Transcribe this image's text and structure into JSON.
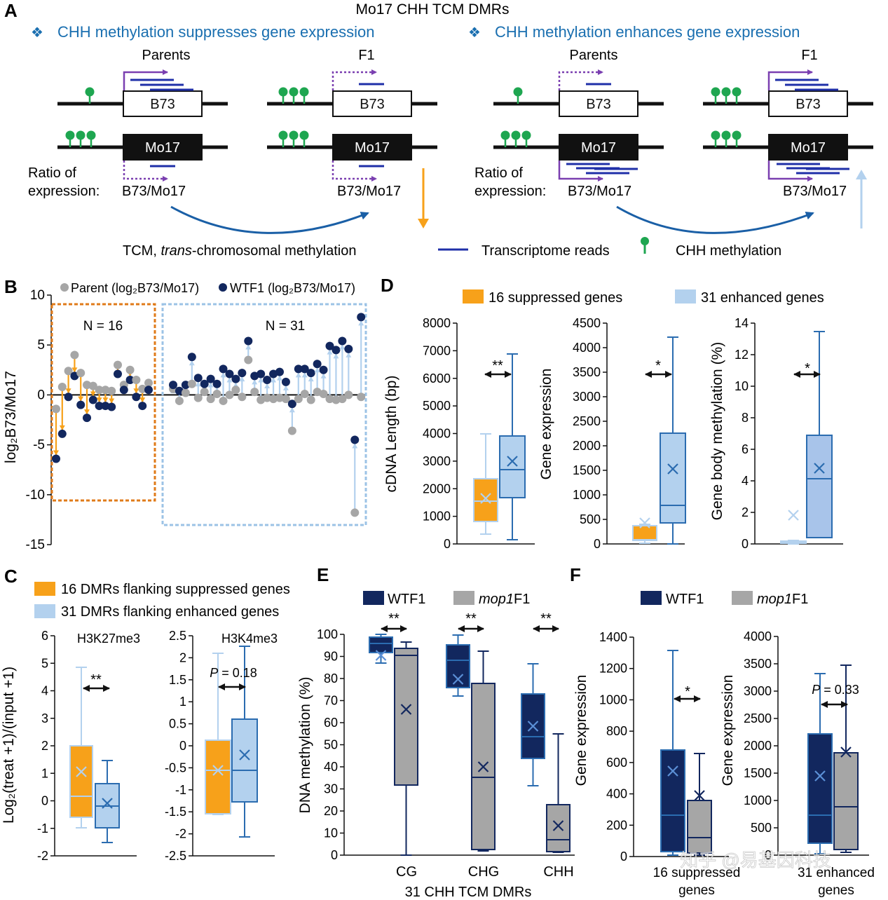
{
  "colors": {
    "orange": "#f7a11a",
    "lightblue": "#b3d1ee",
    "navy": "#12275e",
    "gray": "#a6a6a6",
    "purple": "#7a3fb0",
    "green": "#1ea650",
    "readblue": "#1f2fa8",
    "header_blue": "#1a6fb0",
    "arrow_blue": "#1a5fa6"
  },
  "panel_a": {
    "label": "A",
    "title": "Mo17 CHH TCM DMRs",
    "left_header": "CHH methylation suppresses gene expression",
    "right_header": "CHH methylation enhances gene expression",
    "bullet": "❖",
    "parents": "Parents",
    "f1": "F1",
    "b73": "B73",
    "mo17": "Mo17",
    "ratio_line1": "Ratio of",
    "ratio_line2": "expression:",
    "ratio_value": "B73/Mo17",
    "tcm_prefix": "TCM, ",
    "tcm_italic": "trans",
    "tcm_suffix": "-chromosomal methylation",
    "legend_reads": "Transcriptome reads",
    "legend_chh": "CHH methylation"
  },
  "panel_b": {
    "label": "B",
    "legend_parent": "Parent (log₂B73/Mo17)",
    "legend_wtf1": "WTF1 (log₂B73/Mo17)",
    "ylabel": "log₂B73/Mo17",
    "box_left": "N = 16",
    "box_right": "N = 31",
    "ylim": [
      -15,
      10
    ],
    "yticks": [
      "10",
      "5",
      "0",
      "-5",
      "-10",
      "-15"
    ]
  },
  "panel_c": {
    "label": "C",
    "legend_orange": "16 DMRs flanking suppressed genes",
    "legend_blue": "31 DMRs flanking enhanced genes",
    "ylabel": "Log₂(treat +1)/(input +1)",
    "sub1_title": "H3K27me3",
    "sub2_title": "H3K4me3",
    "sub1_sig": "**",
    "sub2_p_italic": "P",
    "sub2_p_rest": " = 0.18",
    "sub1_yticks": [
      "6",
      "5",
      "4",
      "3",
      "2",
      "1",
      "0",
      "-1",
      "-2"
    ],
    "sub2_yticks": [
      "2.5",
      "2",
      "1.5",
      "1",
      "0.5",
      "0",
      "-0.5",
      "-1",
      "-1.5",
      "-2",
      "-2.5"
    ]
  },
  "panel_d": {
    "label": "D",
    "legend_orange": "16 suppressed genes",
    "legend_blue": "31 enhanced genes",
    "sub1_ylabel": "cDNA Length (bp)",
    "sub2_ylabel": "Gene expression",
    "sub3_ylabel": "Gene body methylation (%)",
    "sub1_sig": "**",
    "sub2_sig": "*",
    "sub3_sig": "*",
    "sub1_yticks": [
      "8000",
      "7000",
      "6000",
      "5000",
      "4000",
      "3000",
      "2000",
      "1000",
      "0"
    ],
    "sub2_yticks": [
      "4500",
      "4000",
      "3500",
      "3000",
      "2500",
      "2000",
      "1500",
      "1000",
      "500",
      "0"
    ],
    "sub3_yticks": [
      "14",
      "12",
      "10",
      "8",
      "6",
      "4",
      "2",
      "0"
    ]
  },
  "panel_e": {
    "label": "E",
    "legend_wtf1": "WTF1",
    "legend_mop1_italic": "mop1",
    "legend_mop1_rest": "F1",
    "ylabel": "DNA methylation (%)",
    "xlabel": "31 CHH TCM DMRs",
    "categories": [
      "CG",
      "CHG",
      "CHH"
    ],
    "sig": [
      "**",
      "**",
      "**"
    ],
    "yticks": [
      "100",
      "90",
      "80",
      "70",
      "60",
      "50",
      "40",
      "30",
      "20",
      "10",
      "0"
    ]
  },
  "panel_f": {
    "label": "F",
    "legend_wtf1": "WTF1",
    "legend_mop1_italic": "mop1",
    "legend_mop1_rest": "F1",
    "ylabel": "Gene expression",
    "sub1_sig": "*",
    "sub2_p_italic": "P",
    "sub2_p_rest": " = 0.33",
    "sub1_x_line1": "16 suppressed",
    "sub1_x_line2": "genes",
    "sub2_x_line1": "31 enhanced",
    "sub2_x_line2": "genes",
    "sub1_yticks": [
      "1400",
      "1200",
      "1000",
      "800",
      "600",
      "400",
      "200",
      "0"
    ],
    "sub2_yticks": [
      "4000",
      "3500",
      "3000",
      "2500",
      "2000",
      "1500",
      "1000",
      "500",
      "0"
    ]
  },
  "watermark": "知乎 @易基因科技"
}
